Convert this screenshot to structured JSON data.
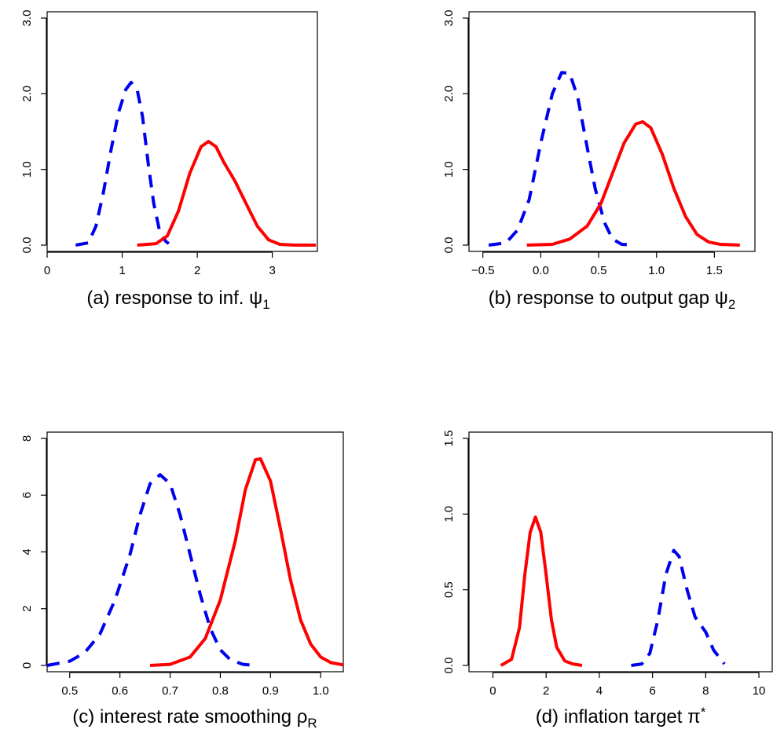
{
  "chart_data": [
    {
      "type": "line",
      "caption": {
        "text": "(a) response to inf. ",
        "symbol": "ψ",
        "subscript": "1"
      },
      "xlim": [
        0,
        3.6
      ],
      "ylim": [
        0,
        3.0
      ],
      "xticks": [
        {
          "value": 0,
          "label": "0"
        },
        {
          "value": 1,
          "label": "1"
        },
        {
          "value": 2,
          "label": "2"
        },
        {
          "value": 3,
          "label": "3"
        }
      ],
      "yticks": [
        {
          "value": 0,
          "label": "0.0"
        },
        {
          "value": 1,
          "label": "1.0"
        },
        {
          "value": 2,
          "label": "2.0"
        },
        {
          "value": 3,
          "label": "3.0"
        }
      ],
      "series": [
        {
          "style": "dashed",
          "color": "#0000ee",
          "points": [
            [
              0.38,
              0.0
            ],
            [
              0.55,
              0.03
            ],
            [
              0.65,
              0.25
            ],
            [
              0.75,
              0.7
            ],
            [
              0.85,
              1.25
            ],
            [
              0.95,
              1.75
            ],
            [
              1.05,
              2.06
            ],
            [
              1.12,
              2.15
            ],
            [
              1.2,
              2.05
            ],
            [
              1.27,
              1.7
            ],
            [
              1.35,
              1.05
            ],
            [
              1.42,
              0.55
            ],
            [
              1.5,
              0.18
            ],
            [
              1.58,
              0.05
            ],
            [
              1.62,
              0.02
            ]
          ]
        },
        {
          "style": "solid",
          "color": "#ff0000",
          "points": [
            [
              1.2,
              0.0
            ],
            [
              1.45,
              0.02
            ],
            [
              1.6,
              0.12
            ],
            [
              1.75,
              0.45
            ],
            [
              1.9,
              0.95
            ],
            [
              2.05,
              1.3
            ],
            [
              2.15,
              1.37
            ],
            [
              2.25,
              1.3
            ],
            [
              2.35,
              1.1
            ],
            [
              2.5,
              0.85
            ],
            [
              2.65,
              0.55
            ],
            [
              2.8,
              0.25
            ],
            [
              2.95,
              0.07
            ],
            [
              3.1,
              0.01
            ],
            [
              3.3,
              0.0
            ],
            [
              3.58,
              0.0
            ]
          ]
        }
      ]
    },
    {
      "type": "line",
      "caption": {
        "text": "(b) response to output gap ",
        "symbol": "ψ",
        "subscript": "2"
      },
      "xlim": [
        -0.62,
        1.85
      ],
      "ylim": [
        0,
        3.0
      ],
      "xticks": [
        {
          "value": -0.5,
          "label": "−0.5"
        },
        {
          "value": 0,
          "label": "0.0"
        },
        {
          "value": 0.5,
          "label": "0.5"
        },
        {
          "value": 1.0,
          "label": "1.0"
        },
        {
          "value": 1.5,
          "label": "1.5"
        }
      ],
      "yticks": [
        {
          "value": 0,
          "label": "0.0"
        },
        {
          "value": 1,
          "label": "1.0"
        },
        {
          "value": 2,
          "label": "2.0"
        },
        {
          "value": 3,
          "label": "3.0"
        }
      ],
      "series": [
        {
          "style": "dashed",
          "color": "#0000ee",
          "points": [
            [
              -0.45,
              0.0
            ],
            [
              -0.3,
              0.03
            ],
            [
              -0.2,
              0.2
            ],
            [
              -0.1,
              0.6
            ],
            [
              0.0,
              1.35
            ],
            [
              0.1,
              2.0
            ],
            [
              0.18,
              2.28
            ],
            [
              0.25,
              2.27
            ],
            [
              0.32,
              1.95
            ],
            [
              0.4,
              1.3
            ],
            [
              0.47,
              0.75
            ],
            [
              0.55,
              0.3
            ],
            [
              0.62,
              0.08
            ],
            [
              0.7,
              0.01
            ],
            [
              0.8,
              0.0
            ]
          ]
        },
        {
          "style": "solid",
          "color": "#ff0000",
          "points": [
            [
              -0.12,
              0.0
            ],
            [
              0.1,
              0.01
            ],
            [
              0.25,
              0.08
            ],
            [
              0.4,
              0.25
            ],
            [
              0.52,
              0.55
            ],
            [
              0.62,
              0.95
            ],
            [
              0.72,
              1.35
            ],
            [
              0.82,
              1.6
            ],
            [
              0.88,
              1.63
            ],
            [
              0.95,
              1.55
            ],
            [
              1.05,
              1.2
            ],
            [
              1.15,
              0.75
            ],
            [
              1.25,
              0.38
            ],
            [
              1.35,
              0.14
            ],
            [
              1.45,
              0.04
            ],
            [
              1.55,
              0.01
            ],
            [
              1.72,
              0.0
            ]
          ]
        }
      ]
    },
    {
      "type": "line",
      "caption": {
        "text": "(c) interest rate smoothing ",
        "symbol": "ρ",
        "subscript": "R"
      },
      "xlim": [
        0.455,
        1.045
      ],
      "ylim": [
        0,
        8.0
      ],
      "xticks": [
        {
          "value": 0.5,
          "label": "0.5"
        },
        {
          "value": 0.6,
          "label": "0.6"
        },
        {
          "value": 0.7,
          "label": "0.7"
        },
        {
          "value": 0.8,
          "label": "0.8"
        },
        {
          "value": 0.9,
          "label": "0.9"
        },
        {
          "value": 1.0,
          "label": "1.0"
        }
      ],
      "yticks": [
        {
          "value": 0,
          "label": "0"
        },
        {
          "value": 2,
          "label": "2"
        },
        {
          "value": 4,
          "label": "4"
        },
        {
          "value": 6,
          "label": "6"
        },
        {
          "value": 8,
          "label": "8"
        }
      ],
      "series": [
        {
          "style": "dashed",
          "color": "#0000ee",
          "points": [
            [
              0.455,
              0.0
            ],
            [
              0.5,
              0.15
            ],
            [
              0.53,
              0.45
            ],
            [
              0.56,
              1.1
            ],
            [
              0.59,
              2.3
            ],
            [
              0.62,
              3.9
            ],
            [
              0.64,
              5.3
            ],
            [
              0.66,
              6.4
            ],
            [
              0.68,
              6.72
            ],
            [
              0.7,
              6.4
            ],
            [
              0.72,
              5.3
            ],
            [
              0.74,
              3.9
            ],
            [
              0.76,
              2.5
            ],
            [
              0.78,
              1.3
            ],
            [
              0.8,
              0.55
            ],
            [
              0.82,
              0.2
            ],
            [
              0.845,
              0.04
            ],
            [
              0.87,
              0.0
            ]
          ]
        },
        {
          "style": "solid",
          "color": "#ff0000",
          "points": [
            [
              0.66,
              0.0
            ],
            [
              0.7,
              0.04
            ],
            [
              0.74,
              0.3
            ],
            [
              0.77,
              0.95
            ],
            [
              0.8,
              2.3
            ],
            [
              0.83,
              4.4
            ],
            [
              0.85,
              6.2
            ],
            [
              0.87,
              7.25
            ],
            [
              0.88,
              7.28
            ],
            [
              0.9,
              6.5
            ],
            [
              0.92,
              4.8
            ],
            [
              0.94,
              3.0
            ],
            [
              0.96,
              1.6
            ],
            [
              0.98,
              0.75
            ],
            [
              1.0,
              0.3
            ],
            [
              1.02,
              0.1
            ],
            [
              1.045,
              0.02
            ]
          ]
        }
      ]
    },
    {
      "type": "line",
      "caption": {
        "text": "(d) inflation target ",
        "symbol": "π",
        "subscript": "*"
      },
      "xlim": [
        -0.9,
        10.5
      ],
      "ylim": [
        0,
        1.5
      ],
      "xticks": [
        {
          "value": 0,
          "label": "0"
        },
        {
          "value": 2,
          "label": "2"
        },
        {
          "value": 4,
          "label": "4"
        },
        {
          "value": 6,
          "label": "6"
        },
        {
          "value": 8,
          "label": "8"
        },
        {
          "value": 10,
          "label": "10"
        }
      ],
      "yticks": [
        {
          "value": 0,
          "label": "0.0"
        },
        {
          "value": 0.5,
          "label": "0.5"
        },
        {
          "value": 1.0,
          "label": "1.0"
        },
        {
          "value": 1.5,
          "label": "1.5"
        }
      ],
      "series": [
        {
          "style": "solid",
          "color": "#ff0000",
          "points": [
            [
              0.3,
              0.0
            ],
            [
              0.7,
              0.04
            ],
            [
              1.0,
              0.25
            ],
            [
              1.2,
              0.6
            ],
            [
              1.4,
              0.88
            ],
            [
              1.6,
              0.98
            ],
            [
              1.8,
              0.88
            ],
            [
              2.0,
              0.6
            ],
            [
              2.2,
              0.3
            ],
            [
              2.4,
              0.12
            ],
            [
              2.7,
              0.03
            ],
            [
              3.0,
              0.01
            ],
            [
              3.35,
              0.0
            ]
          ]
        },
        {
          "style": "dashed",
          "color": "#0000ee",
          "points": [
            [
              5.2,
              0.0
            ],
            [
              5.6,
              0.01
            ],
            [
              5.9,
              0.08
            ],
            [
              6.2,
              0.3
            ],
            [
              6.5,
              0.6
            ],
            [
              6.8,
              0.76
            ],
            [
              7.0,
              0.72
            ],
            [
              7.3,
              0.5
            ],
            [
              7.6,
              0.32
            ],
            [
              8.0,
              0.22
            ],
            [
              8.3,
              0.1
            ],
            [
              8.7,
              0.01
            ]
          ]
        }
      ]
    }
  ]
}
